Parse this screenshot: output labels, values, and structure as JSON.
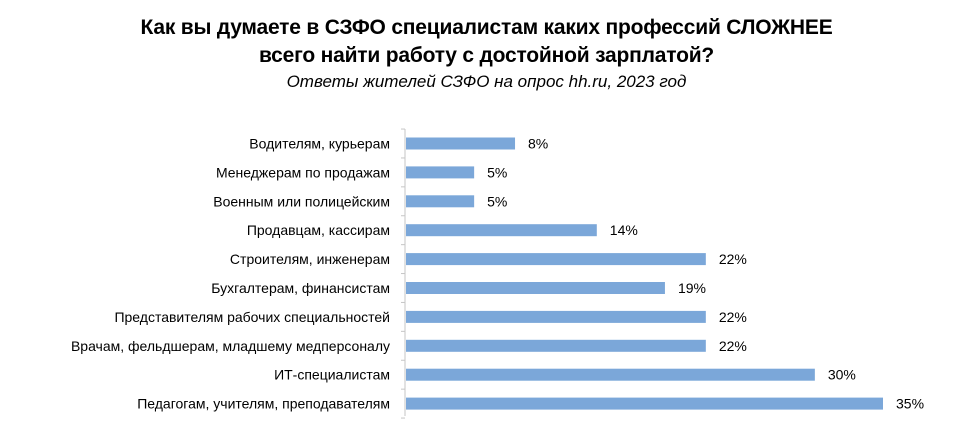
{
  "chart_data": {
    "type": "bar",
    "orientation": "horizontal",
    "title_line1": "Как вы думаете в СЗФО специалистам каких профессий СЛОЖНЕЕ",
    "title_line2": "всего найти работу с достойной зарплатой?",
    "subtitle": "Ответы жителей СЗФО на опрос hh.ru, 2023 год",
    "categories": [
      "Водителям, курьерам",
      "Менеджерам по продажам",
      "Военным или полицейским",
      "Продавцам, кассирам",
      "Строителям, инженерам",
      "Бухгалтерам, финансистам",
      "Представителям рабочих специальностей",
      "Врачам, фельдшерам, младшему медперсоналу",
      "ИТ-специалистам",
      "Педагогам, учителям, преподавателям"
    ],
    "values": [
      8,
      5,
      5,
      14,
      22,
      19,
      22,
      22,
      30,
      35
    ],
    "value_labels": [
      "8%",
      "5%",
      "5%",
      "14%",
      "22%",
      "19%",
      "22%",
      "22%",
      "30%",
      "35%"
    ],
    "unit": "%",
    "xlim": [
      0,
      35
    ],
    "grid": false,
    "legend": "none",
    "bar_color": "#7ba7d9",
    "axis_color": "#c6c6c6"
  }
}
